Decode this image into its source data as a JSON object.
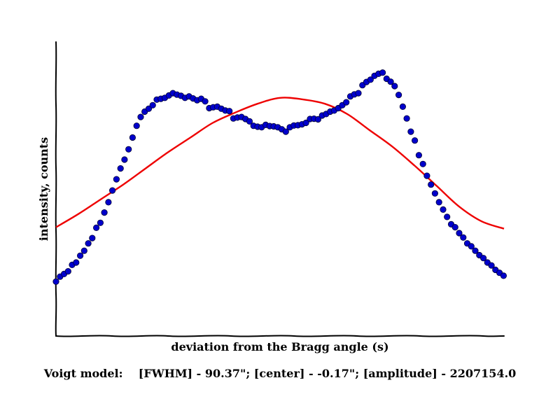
{
  "chart_data": {
    "type": "scatter",
    "xlabel": "deviation from the Bragg angle (s)",
    "ylabel": "intensity, counts",
    "caption": "Voigt model:    [FWHM] - 90.37\"; [center] - -0.17\"; [amplitude] - 2207154.0",
    "xlim": [
      0,
      100
    ],
    "ylim": [
      0,
      100
    ],
    "grid": false,
    "legend": "none",
    "colors": {
      "points": "#0000cc",
      "fit": "#ee0000",
      "axes": "#000000"
    },
    "series": [
      {
        "kind": "points",
        "x": [
          0.0,
          0.9,
          1.8,
          2.7,
          3.6,
          4.5,
          5.4,
          6.3,
          7.2,
          8.1,
          9.0,
          9.9,
          10.8,
          11.7,
          12.6,
          13.5,
          14.4,
          15.3,
          16.2,
          17.1,
          18.0,
          18.9,
          19.8,
          20.7,
          21.6,
          22.5,
          23.4,
          24.3,
          25.2,
          26.1,
          27.0,
          27.9,
          28.8,
          29.7,
          30.6,
          31.5,
          32.4,
          33.3,
          34.2,
          35.1,
          36.0,
          36.9,
          37.8,
          38.7,
          39.6,
          40.5,
          41.4,
          42.3,
          43.2,
          44.1,
          45.0,
          45.9,
          46.8,
          47.7,
          48.6,
          49.5,
          50.4,
          51.3,
          52.2,
          53.1,
          54.0,
          54.9,
          55.8,
          56.7,
          57.6,
          58.5,
          59.4,
          60.3,
          61.2,
          62.1,
          63.0,
          63.9,
          64.8,
          65.7,
          66.6,
          67.5,
          68.4,
          69.3,
          70.2,
          71.1,
          72.0,
          72.9,
          73.8,
          74.7,
          75.6,
          76.5,
          77.4,
          78.3,
          79.2,
          80.1,
          81.0,
          81.9,
          82.8,
          83.7,
          84.6,
          85.5,
          86.4,
          87.3,
          88.2,
          89.1,
          90.0,
          90.9,
          91.8,
          92.7,
          93.6,
          94.5,
          95.4,
          96.3,
          97.2,
          98.1,
          99.0,
          99.9
        ],
        "y": [
          18.5,
          20.2,
          21.1,
          22.0,
          24.2,
          25.0,
          27.3,
          29.0,
          31.5,
          33.3,
          36.8,
          38.5,
          42.0,
          45.5,
          49.5,
          53.3,
          57.0,
          60.0,
          63.5,
          67.5,
          71.5,
          74.5,
          76.3,
          77.3,
          78.5,
          80.4,
          80.7,
          81.0,
          81.8,
          82.6,
          82.1,
          81.7,
          81.0,
          81.5,
          80.8,
          80.2,
          80.7,
          79.8,
          77.5,
          77.8,
          78.0,
          77.3,
          76.7,
          76.5,
          74.0,
          74.3,
          74.5,
          73.8,
          73.0,
          71.5,
          71.2,
          71.0,
          71.8,
          71.4,
          71.3,
          71.0,
          70.3,
          69.5,
          71.0,
          71.6,
          71.7,
          72.0,
          72.5,
          73.8,
          73.9,
          73.7,
          75.0,
          75.5,
          76.3,
          76.7,
          77.5,
          78.5,
          79.5,
          81.5,
          82.2,
          82.6,
          85.3,
          86.4,
          87.2,
          88.5,
          89.2,
          89.6,
          87.5,
          86.5,
          85.0,
          82.0,
          78.0,
          74.0,
          69.5,
          66.5,
          61.5,
          58.5,
          54.5,
          51.5,
          48.5,
          45.5,
          43.0,
          40.5,
          38.0,
          37.0,
          35.0,
          33.5,
          31.5,
          30.5,
          29.0,
          27.5,
          26.5,
          25.0,
          24.0,
          22.5,
          21.5,
          20.5
        ]
      },
      {
        "kind": "line",
        "x": [
          0,
          5,
          10,
          15,
          20,
          25,
          30,
          35,
          40,
          45,
          50,
          55,
          60,
          65,
          70,
          75,
          80,
          85,
          90,
          95,
          100
        ],
        "y": [
          37.0,
          41.5,
          46.5,
          51.5,
          57.0,
          62.5,
          67.5,
          72.5,
          76.0,
          79.0,
          81.0,
          80.5,
          79.0,
          75.5,
          70.0,
          64.5,
          58.0,
          51.0,
          44.0,
          39.0,
          36.5
        ]
      }
    ]
  }
}
